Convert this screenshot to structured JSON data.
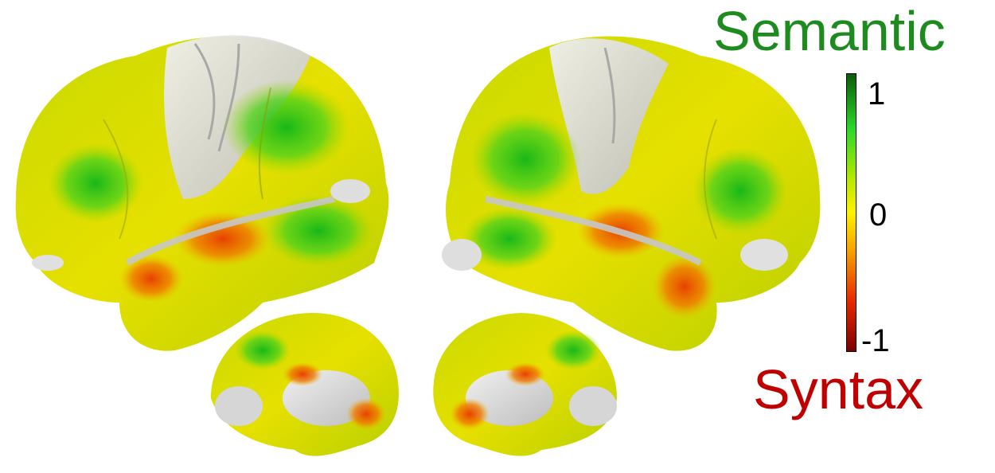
{
  "legend": {
    "top_label": "Semantic",
    "bottom_label": "Syntax",
    "ticks": {
      "max": "1",
      "mid": "0",
      "min": "-1"
    }
  },
  "colors": {
    "semantic": "#1e8b1e",
    "syntax": "#c00000",
    "scale": [
      "#7a0000",
      "#e62800",
      "#f59a00",
      "#fff200",
      "#b7e800",
      "#2bd82b",
      "#0a5a0a"
    ],
    "cortex_gray": "#d9d9d9"
  },
  "panels": [
    {
      "view": "left-lateral"
    },
    {
      "view": "right-lateral"
    },
    {
      "view": "left-medial"
    },
    {
      "view": "right-medial"
    }
  ]
}
